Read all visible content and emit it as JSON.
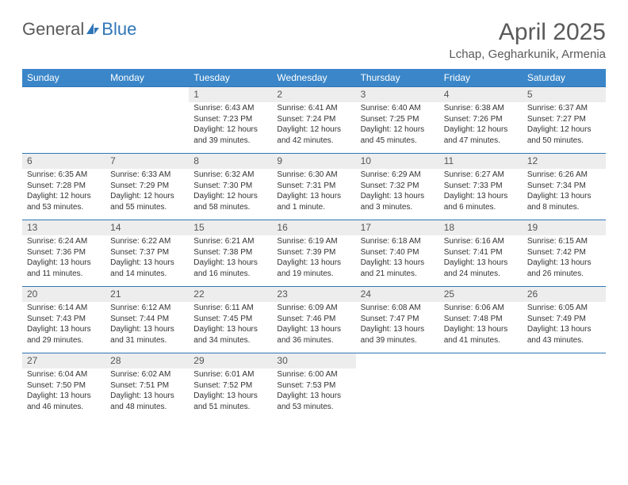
{
  "logo": {
    "word1": "General",
    "word2": "Blue"
  },
  "header": {
    "month_title": "April 2025",
    "location": "Lchap, Gegharkunik, Armenia"
  },
  "colors": {
    "header_bg": "#3a86c8",
    "header_text": "#ffffff",
    "daynum_bg": "#ededed",
    "border": "#2f76b8",
    "text": "#333333",
    "title": "#5a5a5a"
  },
  "day_headers": [
    "Sunday",
    "Monday",
    "Tuesday",
    "Wednesday",
    "Thursday",
    "Friday",
    "Saturday"
  ],
  "weeks": [
    [
      {
        "blank": true
      },
      {
        "blank": true
      },
      {
        "num": "1",
        "sunrise": "Sunrise: 6:43 AM",
        "sunset": "Sunset: 7:23 PM",
        "daylight1": "Daylight: 12 hours",
        "daylight2": "and 39 minutes."
      },
      {
        "num": "2",
        "sunrise": "Sunrise: 6:41 AM",
        "sunset": "Sunset: 7:24 PM",
        "daylight1": "Daylight: 12 hours",
        "daylight2": "and 42 minutes."
      },
      {
        "num": "3",
        "sunrise": "Sunrise: 6:40 AM",
        "sunset": "Sunset: 7:25 PM",
        "daylight1": "Daylight: 12 hours",
        "daylight2": "and 45 minutes."
      },
      {
        "num": "4",
        "sunrise": "Sunrise: 6:38 AM",
        "sunset": "Sunset: 7:26 PM",
        "daylight1": "Daylight: 12 hours",
        "daylight2": "and 47 minutes."
      },
      {
        "num": "5",
        "sunrise": "Sunrise: 6:37 AM",
        "sunset": "Sunset: 7:27 PM",
        "daylight1": "Daylight: 12 hours",
        "daylight2": "and 50 minutes."
      }
    ],
    [
      {
        "num": "6",
        "sunrise": "Sunrise: 6:35 AM",
        "sunset": "Sunset: 7:28 PM",
        "daylight1": "Daylight: 12 hours",
        "daylight2": "and 53 minutes."
      },
      {
        "num": "7",
        "sunrise": "Sunrise: 6:33 AM",
        "sunset": "Sunset: 7:29 PM",
        "daylight1": "Daylight: 12 hours",
        "daylight2": "and 55 minutes."
      },
      {
        "num": "8",
        "sunrise": "Sunrise: 6:32 AM",
        "sunset": "Sunset: 7:30 PM",
        "daylight1": "Daylight: 12 hours",
        "daylight2": "and 58 minutes."
      },
      {
        "num": "9",
        "sunrise": "Sunrise: 6:30 AM",
        "sunset": "Sunset: 7:31 PM",
        "daylight1": "Daylight: 13 hours",
        "daylight2": "and 1 minute."
      },
      {
        "num": "10",
        "sunrise": "Sunrise: 6:29 AM",
        "sunset": "Sunset: 7:32 PM",
        "daylight1": "Daylight: 13 hours",
        "daylight2": "and 3 minutes."
      },
      {
        "num": "11",
        "sunrise": "Sunrise: 6:27 AM",
        "sunset": "Sunset: 7:33 PM",
        "daylight1": "Daylight: 13 hours",
        "daylight2": "and 6 minutes."
      },
      {
        "num": "12",
        "sunrise": "Sunrise: 6:26 AM",
        "sunset": "Sunset: 7:34 PM",
        "daylight1": "Daylight: 13 hours",
        "daylight2": "and 8 minutes."
      }
    ],
    [
      {
        "num": "13",
        "sunrise": "Sunrise: 6:24 AM",
        "sunset": "Sunset: 7:36 PM",
        "daylight1": "Daylight: 13 hours",
        "daylight2": "and 11 minutes."
      },
      {
        "num": "14",
        "sunrise": "Sunrise: 6:22 AM",
        "sunset": "Sunset: 7:37 PM",
        "daylight1": "Daylight: 13 hours",
        "daylight2": "and 14 minutes."
      },
      {
        "num": "15",
        "sunrise": "Sunrise: 6:21 AM",
        "sunset": "Sunset: 7:38 PM",
        "daylight1": "Daylight: 13 hours",
        "daylight2": "and 16 minutes."
      },
      {
        "num": "16",
        "sunrise": "Sunrise: 6:19 AM",
        "sunset": "Sunset: 7:39 PM",
        "daylight1": "Daylight: 13 hours",
        "daylight2": "and 19 minutes."
      },
      {
        "num": "17",
        "sunrise": "Sunrise: 6:18 AM",
        "sunset": "Sunset: 7:40 PM",
        "daylight1": "Daylight: 13 hours",
        "daylight2": "and 21 minutes."
      },
      {
        "num": "18",
        "sunrise": "Sunrise: 6:16 AM",
        "sunset": "Sunset: 7:41 PM",
        "daylight1": "Daylight: 13 hours",
        "daylight2": "and 24 minutes."
      },
      {
        "num": "19",
        "sunrise": "Sunrise: 6:15 AM",
        "sunset": "Sunset: 7:42 PM",
        "daylight1": "Daylight: 13 hours",
        "daylight2": "and 26 minutes."
      }
    ],
    [
      {
        "num": "20",
        "sunrise": "Sunrise: 6:14 AM",
        "sunset": "Sunset: 7:43 PM",
        "daylight1": "Daylight: 13 hours",
        "daylight2": "and 29 minutes."
      },
      {
        "num": "21",
        "sunrise": "Sunrise: 6:12 AM",
        "sunset": "Sunset: 7:44 PM",
        "daylight1": "Daylight: 13 hours",
        "daylight2": "and 31 minutes."
      },
      {
        "num": "22",
        "sunrise": "Sunrise: 6:11 AM",
        "sunset": "Sunset: 7:45 PM",
        "daylight1": "Daylight: 13 hours",
        "daylight2": "and 34 minutes."
      },
      {
        "num": "23",
        "sunrise": "Sunrise: 6:09 AM",
        "sunset": "Sunset: 7:46 PM",
        "daylight1": "Daylight: 13 hours",
        "daylight2": "and 36 minutes."
      },
      {
        "num": "24",
        "sunrise": "Sunrise: 6:08 AM",
        "sunset": "Sunset: 7:47 PM",
        "daylight1": "Daylight: 13 hours",
        "daylight2": "and 39 minutes."
      },
      {
        "num": "25",
        "sunrise": "Sunrise: 6:06 AM",
        "sunset": "Sunset: 7:48 PM",
        "daylight1": "Daylight: 13 hours",
        "daylight2": "and 41 minutes."
      },
      {
        "num": "26",
        "sunrise": "Sunrise: 6:05 AM",
        "sunset": "Sunset: 7:49 PM",
        "daylight1": "Daylight: 13 hours",
        "daylight2": "and 43 minutes."
      }
    ],
    [
      {
        "num": "27",
        "sunrise": "Sunrise: 6:04 AM",
        "sunset": "Sunset: 7:50 PM",
        "daylight1": "Daylight: 13 hours",
        "daylight2": "and 46 minutes."
      },
      {
        "num": "28",
        "sunrise": "Sunrise: 6:02 AM",
        "sunset": "Sunset: 7:51 PM",
        "daylight1": "Daylight: 13 hours",
        "daylight2": "and 48 minutes."
      },
      {
        "num": "29",
        "sunrise": "Sunrise: 6:01 AM",
        "sunset": "Sunset: 7:52 PM",
        "daylight1": "Daylight: 13 hours",
        "daylight2": "and 51 minutes."
      },
      {
        "num": "30",
        "sunrise": "Sunrise: 6:00 AM",
        "sunset": "Sunset: 7:53 PM",
        "daylight1": "Daylight: 13 hours",
        "daylight2": "and 53 minutes."
      },
      {
        "blank": true
      },
      {
        "blank": true
      },
      {
        "blank": true
      }
    ]
  ]
}
